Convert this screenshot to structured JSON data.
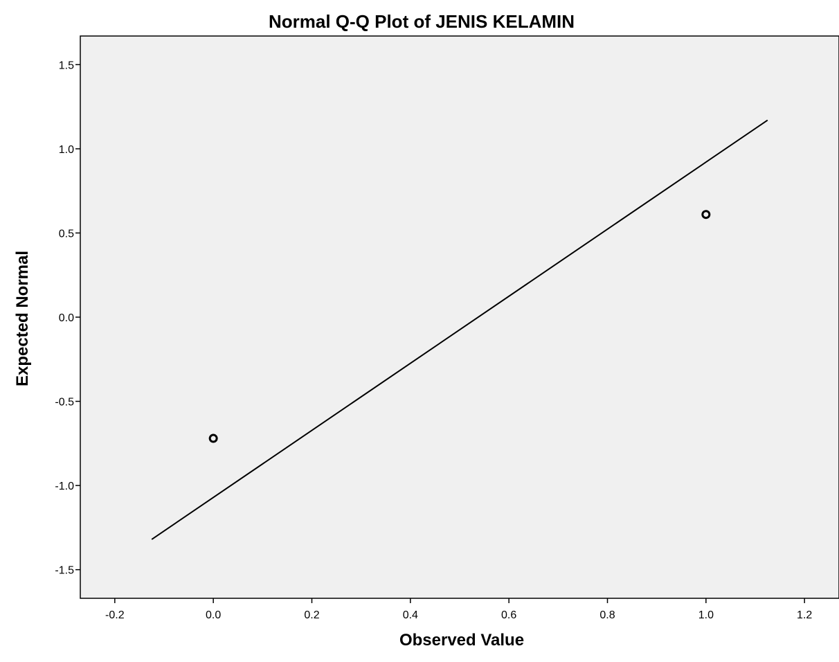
{
  "chart_data": {
    "type": "scatter",
    "title": "Normal Q-Q Plot of JENIS KELAMIN",
    "xlabel": "Observed Value",
    "ylabel": "Expected Normal",
    "xlim": [
      -0.27,
      1.27
    ],
    "ylim": [
      -1.67,
      1.67
    ],
    "x_ticks": [
      -0.2,
      0.0,
      0.2,
      0.4,
      0.6,
      0.8,
      1.0,
      1.2
    ],
    "x_tick_labels": [
      "-0.2",
      "0.0",
      "0.2",
      "0.4",
      "0.6",
      "0.8",
      "1.0",
      "1.2"
    ],
    "y_ticks": [
      1.5,
      1.0,
      0.5,
      0.0,
      -0.5,
      -1.0,
      -1.5
    ],
    "y_tick_labels": [
      "1.5",
      "1.0",
      "0.5",
      "0.0",
      "-0.5",
      "-1.0",
      "-1.5"
    ],
    "points": [
      {
        "x": 0.0,
        "y": -0.72
      },
      {
        "x": 1.0,
        "y": 0.61
      }
    ],
    "reference_line": {
      "x": [
        -0.125,
        1.125
      ],
      "y": [
        -1.32,
        1.17
      ]
    },
    "grid": false,
    "legend": "none",
    "colors": {
      "plot_background": "#f0f0f0",
      "page_background": "#ffffff",
      "marks": "#000000"
    }
  }
}
